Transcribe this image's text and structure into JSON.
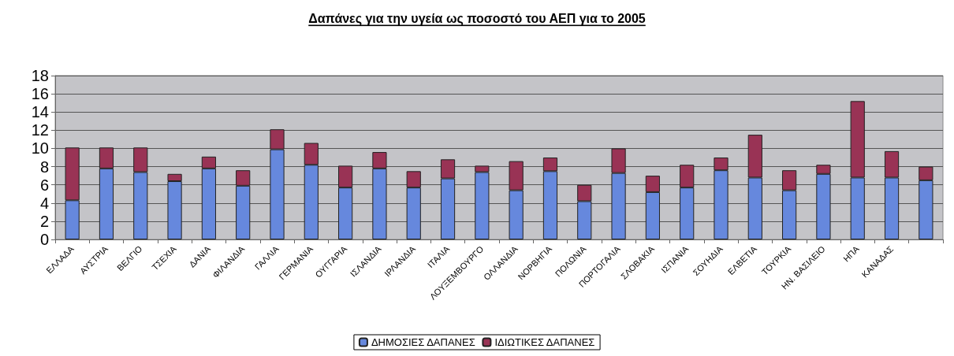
{
  "chart_data": {
    "type": "bar",
    "title": "Δαπάνες για την υγεία ως ποσοστό του ΑΕΠ για το 2005",
    "categories": [
      "ΕΛΛΑΔΑ",
      "ΑΥΣΤΡΙΑ",
      "ΒΕΛΓΙΟ",
      "ΤΣΕΧΙΑ",
      "ΔΑΝΙΑ",
      "ΦΙΛΑΝΔΙΑ",
      "ΓΑΛΛΙΑ",
      "ΓΕΡΜΑΝΙΑ",
      "ΟΥΓΓΑΡΙΑ",
      "ΙΣΛΑΝΔΙΑ",
      "ΙΡΛΑΝΔΙΑ",
      "ΙΤΑΛΙΑ",
      "ΛΟΥΞΕΜΒΟΥΡΓΟ",
      "ΟΛΛΑΝΔΙΑ",
      "ΝΟΡΒΗΓΙΑ",
      "ΠΟΛΩΝΙΑ",
      "ΠΟΡΤΟΓΑΛΙΑ",
      "ΣΛΟΒΑΚΙΑ",
      "ΙΣΠΑΝΙΑ",
      "ΣΟΥΗΔΙΑ",
      "ΕΛΒΕΤΙΑ",
      "ΤΟΥΡΚΙΑ",
      "ΗΝ. ΒΑΣΙΛΕΙΟ",
      "ΗΠΑ",
      "ΚΑΝΑΔΑΣ",
      null
    ],
    "stacked": true,
    "series": [
      {
        "name": "ΔΗΜΟΣΙΕΣ ΔΑΠΑΝΕΣ",
        "color": "#6688dd",
        "values": [
          4.3,
          7.8,
          7.4,
          6.4,
          7.8,
          5.9,
          9.9,
          8.2,
          5.7,
          7.8,
          5.7,
          6.7,
          7.4,
          5.4,
          7.5,
          4.2,
          7.3,
          5.2,
          5.7,
          7.6,
          6.8,
          5.4,
          7.2,
          6.8,
          6.8,
          6.5
        ]
      },
      {
        "name": "ΙΔΙΩΤΙΚΕΣ ΔΑΠΑΝΕΣ",
        "color": "#993355",
        "values": [
          5.8,
          2.3,
          2.7,
          0.8,
          1.3,
          1.7,
          2.2,
          2.4,
          2.4,
          1.8,
          1.8,
          2.1,
          0.7,
          3.2,
          1.5,
          1.8,
          2.7,
          1.8,
          2.5,
          1.4,
          4.7,
          2.2,
          1.0,
          8.4,
          2.9,
          1.5
        ]
      }
    ],
    "ylim": [
      0,
      18
    ],
    "yticks": [
      0,
      2,
      4,
      6,
      8,
      10,
      12,
      14,
      16,
      18
    ],
    "grid": "y",
    "legend": "bottom"
  }
}
